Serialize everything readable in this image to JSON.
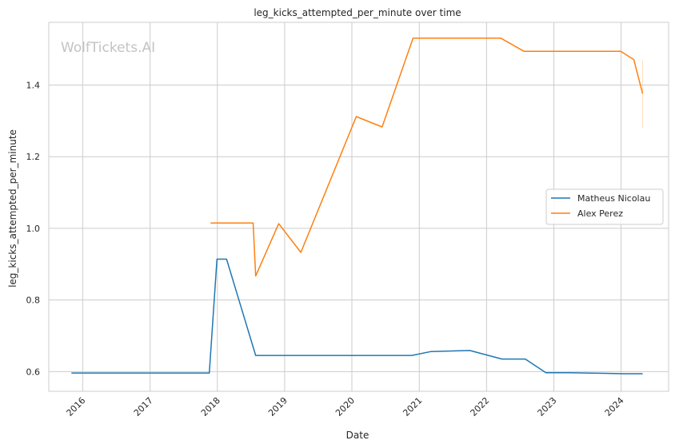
{
  "watermark": "WolfTickets.AI",
  "chart_data": {
    "type": "line",
    "title": "leg_kicks_attempted_per_minute over time",
    "xlabel": "Date",
    "ylabel": "leg_kicks_attempted_per_minute",
    "x_ticks": [
      "2016",
      "2017",
      "2018",
      "2019",
      "2020",
      "2021",
      "2022",
      "2023",
      "2024"
    ],
    "y_ticks": [
      "0.6",
      "0.8",
      "1.0",
      "1.2",
      "1.4"
    ],
    "xlim": [
      "2015-07-01",
      "2024-09-15"
    ],
    "ylim": [
      0.545,
      1.575
    ],
    "grid": true,
    "legend_position": "center-right",
    "series": [
      {
        "name": "Matheus Nicolau",
        "color": "#1f77b4",
        "points": [
          [
            "2015-11-01",
            0.596
          ],
          [
            "2017-11-18",
            0.596
          ],
          [
            "2017-12-30",
            0.914
          ],
          [
            "2018-02-20",
            0.914
          ],
          [
            "2018-07-28",
            0.645
          ],
          [
            "2020-11-21",
            0.645
          ],
          [
            "2021-03-06",
            0.656
          ],
          [
            "2021-10-02",
            0.659
          ],
          [
            "2022-03-26",
            0.635
          ],
          [
            "2022-07-30",
            0.635
          ],
          [
            "2022-11-19",
            0.597
          ],
          [
            "2023-03-25",
            0.597
          ],
          [
            "2024-01-13",
            0.594
          ],
          [
            "2024-04-27",
            0.594
          ]
        ]
      },
      {
        "name": "Alex Perez",
        "color": "#ff7f0e",
        "points": [
          [
            "2017-11-25",
            1.015
          ],
          [
            "2018-07-14",
            1.015
          ],
          [
            "2018-07-28",
            0.867
          ],
          [
            "2018-11-30",
            1.013
          ],
          [
            "2019-03-30",
            0.933
          ],
          [
            "2020-01-25",
            1.312
          ],
          [
            "2020-06-13",
            1.283
          ],
          [
            "2020-11-28",
            1.531
          ],
          [
            "2022-03-19",
            1.531
          ],
          [
            "2022-07-23",
            1.494
          ],
          [
            "2023-12-30",
            1.494
          ],
          [
            "2024-03-10",
            1.471
          ],
          [
            "2024-04-27",
            1.376
          ]
        ],
        "error_band": {
          "x": "2024-04-27",
          "low": 1.28,
          "high": 1.47
        }
      }
    ]
  }
}
